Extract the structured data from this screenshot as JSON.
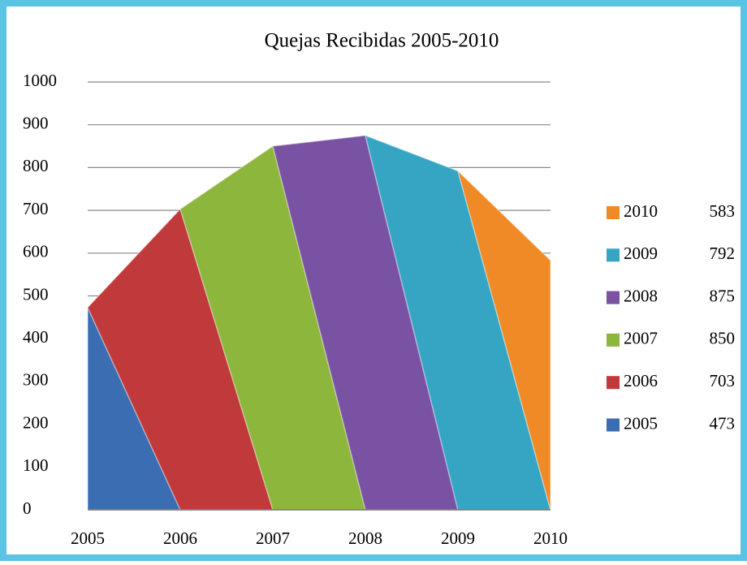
{
  "chart_data": {
    "type": "band-area",
    "title": "Quejas  Recibidas 2005-2010",
    "categories": [
      "2005",
      "2006",
      "2007",
      "2008",
      "2009",
      "2010"
    ],
    "series": [
      {
        "name": "2005",
        "color": "#3b6db3",
        "value": 473
      },
      {
        "name": "2006",
        "color": "#c0393b",
        "value": 703
      },
      {
        "name": "2007",
        "color": "#8db63c",
        "value": 850
      },
      {
        "name": "2008",
        "color": "#7a52a3",
        "value": 875
      },
      {
        "name": "2009",
        "color": "#35a5c3",
        "value": 792
      },
      {
        "name": "2010",
        "color": "#ef8a27",
        "value": 583
      }
    ],
    "ylim": [
      0,
      1000
    ],
    "yticks": [
      0,
      100,
      200,
      300,
      400,
      500,
      600,
      700,
      800,
      900,
      1000
    ],
    "grid": true,
    "legend": "right"
  }
}
